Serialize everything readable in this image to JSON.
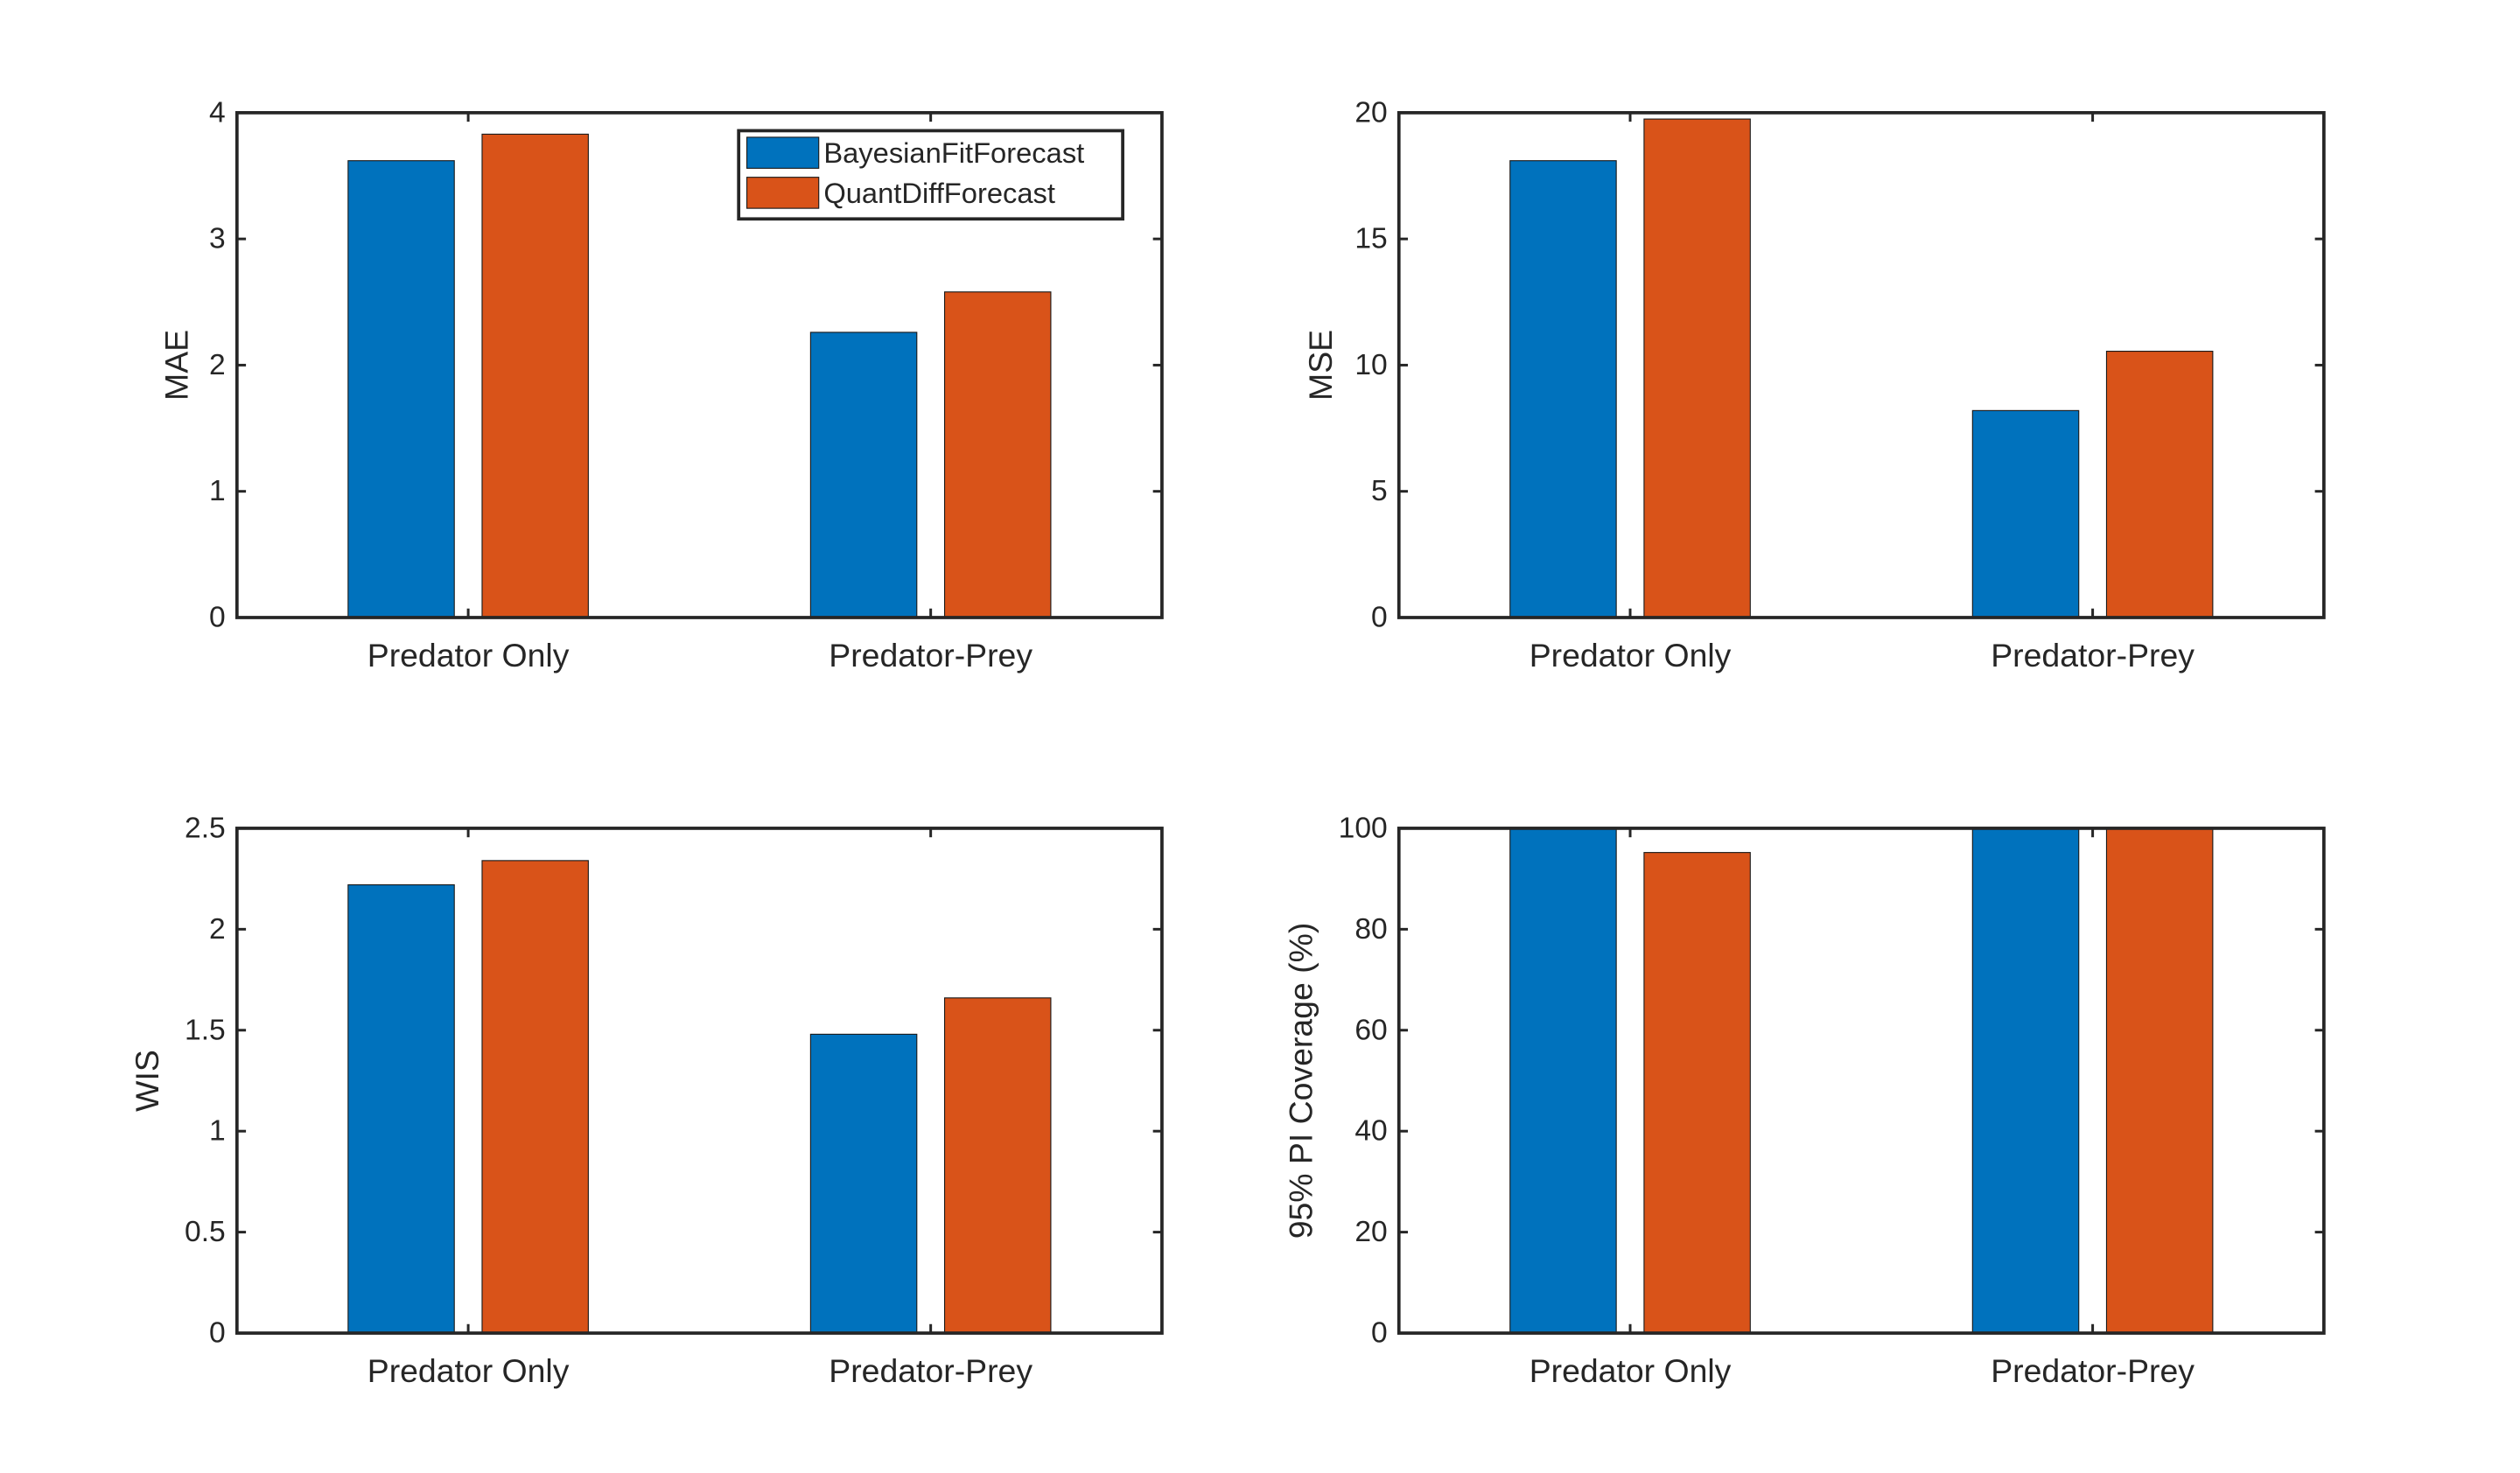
{
  "colors": {
    "BayesianFitForecast": "#0072BD",
    "QuantDiffForecast": "#D95319",
    "axis": "#262626",
    "background": "#ffffff"
  },
  "legend": {
    "placement": "top-right of first panel",
    "items": [
      "BayesianFitForecast",
      "QuantDiffForecast"
    ]
  },
  "chart_data": [
    {
      "type": "bar",
      "categories": [
        "Predator Only",
        "Predator-Prey"
      ],
      "series": [
        {
          "name": "BayesianFitForecast",
          "values": [
            3.62,
            2.26
          ]
        },
        {
          "name": "QuantDiffForecast",
          "values": [
            3.83,
            2.58
          ]
        }
      ],
      "xlabel": "",
      "ylabel": "MAE",
      "ylim": [
        0,
        4
      ],
      "yticks": [
        "0",
        "1",
        "2",
        "3",
        "4"
      ],
      "grid": false,
      "legend": true
    },
    {
      "type": "bar",
      "categories": [
        "Predator Only",
        "Predator-Prey"
      ],
      "series": [
        {
          "name": "BayesianFitForecast",
          "values": [
            18.1,
            8.2
          ]
        },
        {
          "name": "QuantDiffForecast",
          "values": [
            19.75,
            10.55
          ]
        }
      ],
      "xlabel": "",
      "ylabel": "MSE",
      "ylim": [
        0,
        20
      ],
      "yticks": [
        "0",
        "5",
        "10",
        "15",
        "20"
      ],
      "grid": false,
      "legend": false
    },
    {
      "type": "bar",
      "categories": [
        "Predator Only",
        "Predator-Prey"
      ],
      "series": [
        {
          "name": "BayesianFitForecast",
          "values": [
            2.22,
            1.48
          ]
        },
        {
          "name": "QuantDiffForecast",
          "values": [
            2.34,
            1.66
          ]
        }
      ],
      "xlabel": "",
      "ylabel": "WIS",
      "ylim": [
        0,
        2.5
      ],
      "yticks": [
        "0",
        "0.5",
        "1",
        "1.5",
        "2",
        "2.5"
      ],
      "grid": false,
      "legend": false
    },
    {
      "type": "bar",
      "categories": [
        "Predator Only",
        "Predator-Prey"
      ],
      "series": [
        {
          "name": "BayesianFitForecast",
          "values": [
            100,
            100
          ]
        },
        {
          "name": "QuantDiffForecast",
          "values": [
            95.2,
            100
          ]
        }
      ],
      "xlabel": "",
      "ylabel": "95% PI Coverage (%)",
      "ylim": [
        0,
        100
      ],
      "yticks": [
        "0",
        "20",
        "40",
        "60",
        "80",
        "100"
      ],
      "grid": false,
      "legend": false
    }
  ]
}
